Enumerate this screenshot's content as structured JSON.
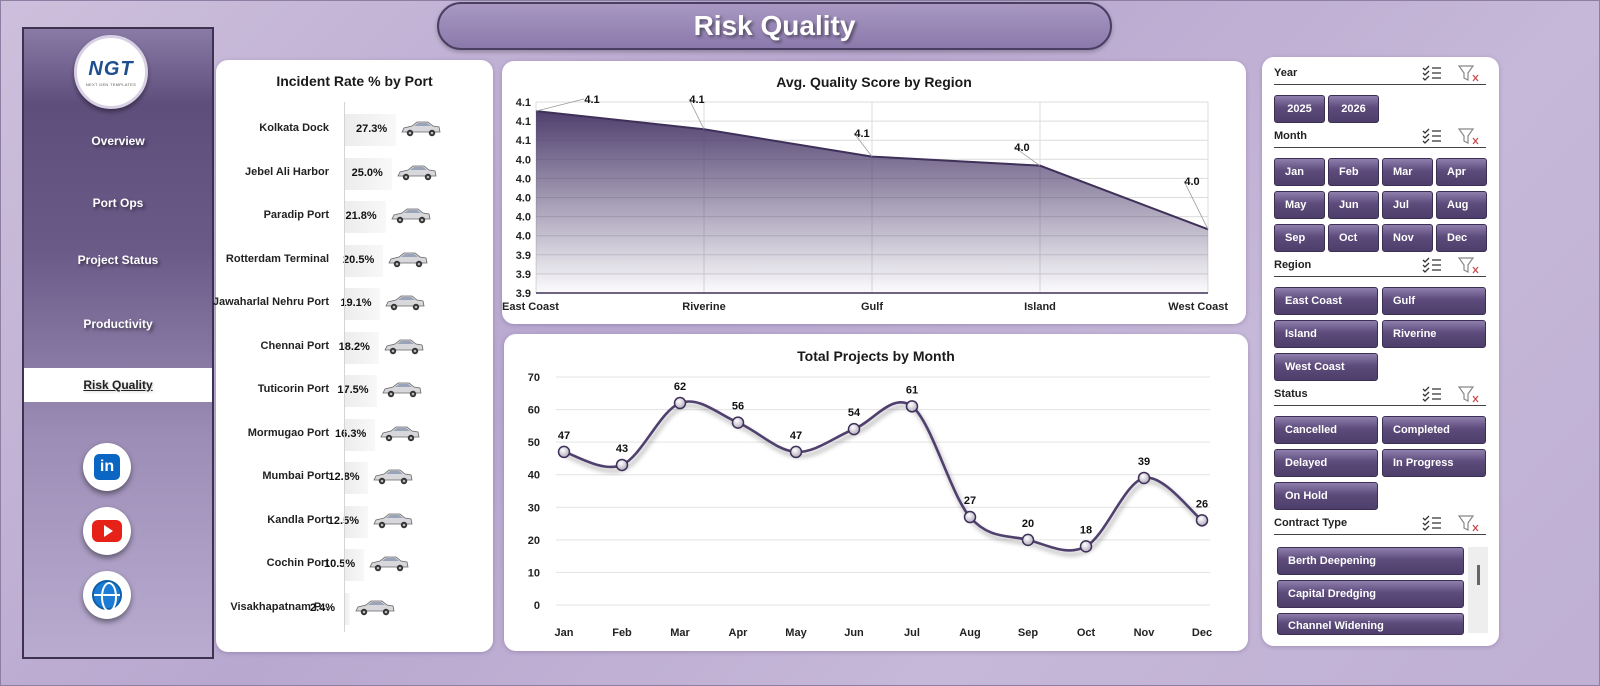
{
  "header": {
    "title": "Risk Quality"
  },
  "logo": {
    "brand_main": "NGT",
    "brand_tag": "NEXT GEN TEMPLATES"
  },
  "sidebar": {
    "items": [
      {
        "label": "Overview",
        "active": false
      },
      {
        "label": "Port Ops",
        "active": false
      },
      {
        "label": "Project Status",
        "active": false
      },
      {
        "label": "Productivity",
        "active": false
      },
      {
        "label": "Risk Quality",
        "active": true
      }
    ],
    "social": [
      "linkedin-icon",
      "youtube-icon",
      "globe-icon"
    ]
  },
  "incident_panel": {
    "title": "Incident Rate % by Port",
    "rows": [
      {
        "port": "Kolkata Dock",
        "value": "27.3%"
      },
      {
        "port": "Jebel Ali Harbor",
        "value": "25.0%"
      },
      {
        "port": "Paradip Port",
        "value": "21.8%"
      },
      {
        "port": "Rotterdam Terminal",
        "value": "20.5%"
      },
      {
        "port": "Jawaharlal Nehru Port",
        "value": "19.1%"
      },
      {
        "port": "Chennai Port",
        "value": "18.2%"
      },
      {
        "port": "Tuticorin Port",
        "value": "17.5%"
      },
      {
        "port": "Mormugao Port",
        "value": "16.3%"
      },
      {
        "port": "Mumbai Port",
        "value": "12.8%"
      },
      {
        "port": "Kandla Port",
        "value": "12.5%"
      },
      {
        "port": "Cochin Port",
        "value": "10.5%"
      },
      {
        "port": "Visakhapatnam P...",
        "value": "2.4%"
      }
    ]
  },
  "quality_panel": {
    "title": "Avg. Quality Score by Region"
  },
  "projects_panel": {
    "title": "Total Projects by Month"
  },
  "chart_data": [
    {
      "type": "bar",
      "title": "Incident Rate % by Port",
      "categories": [
        "Kolkata Dock",
        "Jebel Ali Harbor",
        "Paradip Port",
        "Rotterdam Terminal",
        "Jawaharlal Nehru Port",
        "Chennai Port",
        "Tuticorin Port",
        "Mormugao Port",
        "Mumbai Port",
        "Kandla Port",
        "Cochin Port",
        "Visakhapatnam P..."
      ],
      "values": [
        27.3,
        25.0,
        21.8,
        20.5,
        19.1,
        18.2,
        17.5,
        16.3,
        12.8,
        12.5,
        10.5,
        2.4
      ],
      "orientation": "horizontal"
    },
    {
      "type": "area",
      "title": "Avg. Quality Score by Region",
      "categories": [
        "East Coast",
        "Riverine",
        "Gulf",
        "Island",
        "West Coast"
      ],
      "values": [
        4.1,
        4.08,
        4.05,
        4.04,
        3.97
      ],
      "data_labels": [
        "4.1",
        "4.1",
        "4.1",
        "4.0",
        "4.0"
      ],
      "y_ticks": [
        "4.1",
        "4.1",
        "4.1",
        "4.0",
        "4.0",
        "4.0",
        "4.0",
        "4.0",
        "3.9",
        "3.9",
        "3.9"
      ],
      "ylim": [
        3.9,
        4.11
      ],
      "color": "#4f3f6e",
      "grid": true
    },
    {
      "type": "line",
      "title": "Total Projects by Month",
      "categories": [
        "Jan",
        "Feb",
        "Mar",
        "Apr",
        "May",
        "Jun",
        "Jul",
        "Aug",
        "Sep",
        "Oct",
        "Nov",
        "Dec"
      ],
      "values": [
        47,
        43,
        62,
        56,
        47,
        54,
        61,
        27,
        20,
        18,
        39,
        26
      ],
      "y_ticks": [
        0,
        10,
        20,
        30,
        40,
        50,
        60,
        70
      ],
      "ylim": [
        0,
        70
      ],
      "color": "#4f3f6e",
      "grid": true
    }
  ],
  "filters": {
    "year": {
      "label": "Year",
      "options": [
        "2025",
        "2026"
      ]
    },
    "month": {
      "label": "Month",
      "options": [
        "Jan",
        "Feb",
        "Mar",
        "Apr",
        "May",
        "Jun",
        "Jul",
        "Aug",
        "Sep",
        "Oct",
        "Nov",
        "Dec"
      ]
    },
    "region": {
      "label": "Region",
      "options": [
        "East Coast",
        "Gulf",
        "Island",
        "Riverine",
        "West Coast"
      ]
    },
    "status": {
      "label": "Status",
      "options": [
        "Cancelled",
        "Completed",
        "Delayed",
        "In Progress",
        "On Hold"
      ]
    },
    "contract": {
      "label": "Contract Type",
      "options": [
        "Berth Deepening",
        "Capital Dredging",
        "Channel Widening"
      ]
    }
  }
}
